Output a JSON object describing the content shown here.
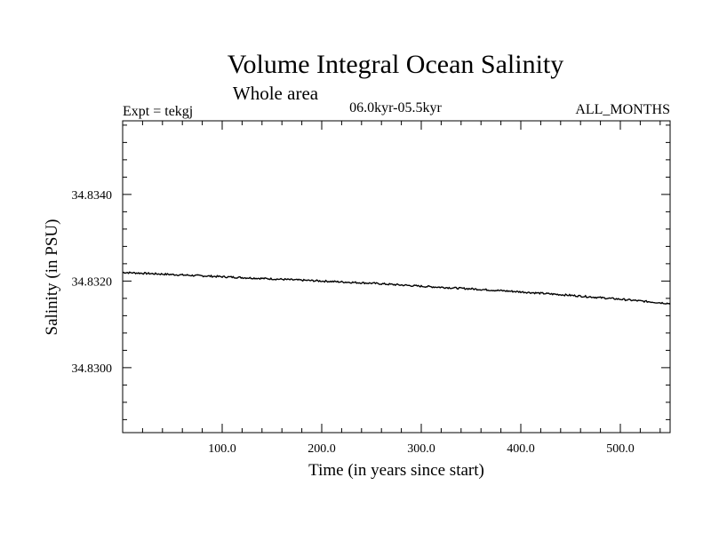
{
  "chart_data": {
    "type": "line",
    "title": "Volume Integral Ocean Salinity",
    "subtitle": "Whole area",
    "expt_label": "Expt = tekgj",
    "period_label": "06.0kyr-05.5kyr",
    "months_label": "ALL_MONTHS",
    "xlabel": "Time (in years since start)",
    "ylabel": "Salinity (in PSU)",
    "xlim": [
      0,
      550
    ],
    "ylim": [
      34.8285,
      34.8357
    ],
    "x_ticks": [
      100,
      200,
      300,
      400,
      500
    ],
    "x_tick_labels": [
      "100.0",
      "200.0",
      "300.0",
      "400.0",
      "500.0"
    ],
    "y_ticks": [
      34.83,
      34.832,
      34.834
    ],
    "y_tick_labels": [
      "34.8300",
      "34.8320",
      "34.8340"
    ],
    "grid": false,
    "series": [
      {
        "name": "Salinity",
        "x": [
          0,
          50,
          100,
          150,
          200,
          250,
          300,
          350,
          400,
          450,
          500,
          550
        ],
        "y": [
          34.8322,
          34.83215,
          34.8321,
          34.83205,
          34.832,
          34.83195,
          34.83188,
          34.83182,
          34.83175,
          34.83167,
          34.83158,
          34.83148
        ]
      }
    ]
  }
}
